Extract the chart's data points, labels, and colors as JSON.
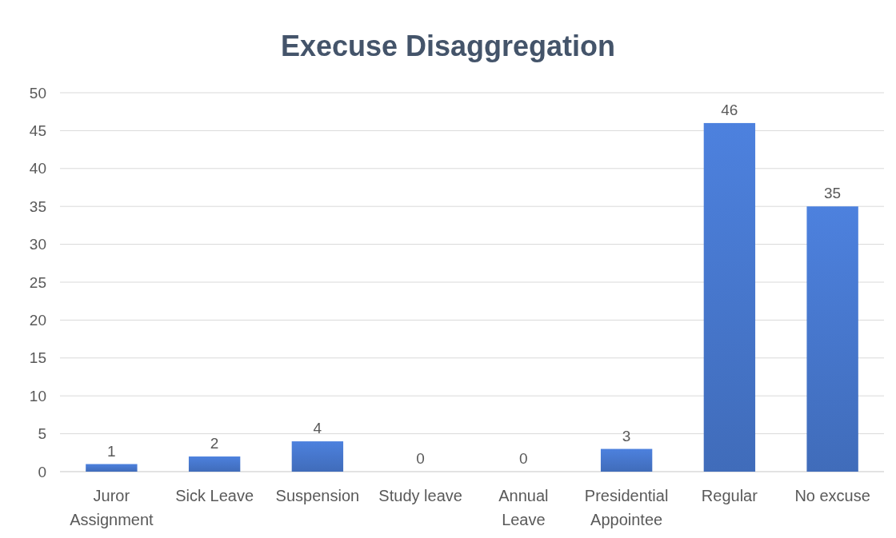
{
  "chart_data": {
    "type": "bar",
    "title": "Execuse Disaggregation",
    "categories": [
      "Juror Assignment",
      "Sick Leave",
      "Suspension",
      "Study leave",
      "Annual Leave",
      "Presidential Appointee",
      "Regular",
      "No excuse"
    ],
    "values": [
      1,
      2,
      4,
      0,
      0,
      3,
      46,
      35
    ],
    "color": "#4472c4",
    "ylim": [
      0,
      50
    ],
    "yticks": [
      0,
      5,
      10,
      15,
      20,
      25,
      30,
      35,
      40,
      45,
      50
    ],
    "grid": "y",
    "data_labels": true
  }
}
